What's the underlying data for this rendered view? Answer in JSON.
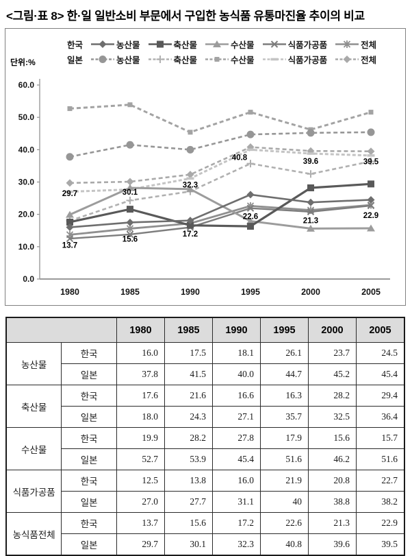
{
  "page": {
    "title": "<그림·표 8> 한·일 일반소비 부문에서 구입한 농식품 유통마진율 추이의 비교"
  },
  "chart": {
    "unit_label": "단위:%",
    "legend": {
      "korea_label": "한국",
      "japan_label": "일본",
      "categories": [
        "농산물",
        "축산물",
        "수산물",
        "식품가공품",
        "전체"
      ]
    }
  },
  "chart_data": {
    "type": "line",
    "x": [
      1980,
      1985,
      1990,
      1995,
      2000,
      2005
    ],
    "ylim": [
      0,
      60
    ],
    "yticks": [
      0,
      10,
      20,
      30,
      40,
      50,
      60
    ],
    "grid": false,
    "legend_position": "top",
    "series": [
      {
        "country": "한국",
        "label": "농산물",
        "marker": "diamond",
        "dashed": false,
        "color": "#6e6e6e",
        "width": 2.6,
        "values": [
          16.0,
          17.5,
          18.1,
          26.1,
          23.7,
          24.5
        ]
      },
      {
        "country": "한국",
        "label": "축산물",
        "marker": "square",
        "dashed": false,
        "color": "#595959",
        "width": 3.2,
        "values": [
          17.6,
          21.6,
          16.6,
          16.3,
          28.2,
          29.4
        ]
      },
      {
        "country": "한국",
        "label": "수산물",
        "marker": "triangle",
        "dashed": false,
        "color": "#9c9c9c",
        "width": 3.0,
        "values": [
          19.9,
          28.2,
          27.8,
          17.9,
          15.6,
          15.7
        ]
      },
      {
        "country": "한국",
        "label": "식품가공품",
        "marker": "x",
        "dashed": false,
        "color": "#7d7d7d",
        "width": 2.4,
        "values": [
          12.5,
          13.8,
          16.0,
          21.9,
          20.8,
          22.7
        ]
      },
      {
        "country": "한국",
        "label": "전체",
        "marker": "asterisk",
        "dashed": false,
        "color": "#8f8f8f",
        "width": 2.8,
        "values": [
          13.7,
          15.6,
          17.2,
          22.6,
          21.3,
          22.9
        ],
        "show_labels": true
      },
      {
        "country": "일본",
        "label": "농산물",
        "marker": "circle",
        "dashed": true,
        "color": "#969696",
        "width": 2.6,
        "values": [
          37.8,
          41.5,
          40.0,
          44.7,
          45.2,
          45.4
        ]
      },
      {
        "country": "일본",
        "label": "축산물",
        "marker": "plus",
        "dashed": true,
        "color": "#b0b0b0",
        "width": 2.6,
        "values": [
          18.0,
          24.3,
          27.1,
          35.7,
          32.5,
          36.4
        ]
      },
      {
        "country": "일본",
        "label": "수산물",
        "marker": "smallsquare",
        "dashed": true,
        "color": "#a3a3a3",
        "width": 3.0,
        "values": [
          52.7,
          53.9,
          45.4,
          51.6,
          46.2,
          51.6
        ]
      },
      {
        "country": "일본",
        "label": "식품가공품",
        "marker": "dash",
        "dashed": true,
        "color": "#c4c4c4",
        "width": 3.0,
        "values": [
          27.0,
          27.7,
          31.1,
          40.0,
          38.8,
          38.2
        ]
      },
      {
        "country": "일본",
        "label": "전체",
        "marker": "diamond",
        "dashed": true,
        "color": "#a9a9a9",
        "width": 2.6,
        "values": [
          29.7,
          30.1,
          32.3,
          40.8,
          39.6,
          39.5
        ],
        "show_labels": true
      }
    ]
  },
  "table": {
    "year_headers": [
      "1980",
      "1985",
      "1990",
      "1995",
      "2000",
      "2005"
    ],
    "groups": [
      {
        "category": "농산물",
        "rows": [
          {
            "country": "한국",
            "values": [
              "16.0",
              "17.5",
              "18.1",
              "26.1",
              "23.7",
              "24.5"
            ]
          },
          {
            "country": "일본",
            "values": [
              "37.8",
              "41.5",
              "40.0",
              "44.7",
              "45.2",
              "45.4"
            ]
          }
        ]
      },
      {
        "category": "축산물",
        "rows": [
          {
            "country": "한국",
            "values": [
              "17.6",
              "21.6",
              "16.6",
              "16.3",
              "28.2",
              "29.4"
            ]
          },
          {
            "country": "일본",
            "values": [
              "18.0",
              "24.3",
              "27.1",
              "35.7",
              "32.5",
              "36.4"
            ]
          }
        ]
      },
      {
        "category": "수산물",
        "rows": [
          {
            "country": "한국",
            "values": [
              "19.9",
              "28.2",
              "27.8",
              "17.9",
              "15.6",
              "15.7"
            ]
          },
          {
            "country": "일본",
            "values": [
              "52.7",
              "53.9",
              "45.4",
              "51.6",
              "46.2",
              "51.6"
            ]
          }
        ]
      },
      {
        "category": "식품가공품",
        "rows": [
          {
            "country": "한국",
            "values": [
              "12.5",
              "13.8",
              "16.0",
              "21.9",
              "20.8",
              "22.7"
            ]
          },
          {
            "country": "일본",
            "values": [
              "27.0",
              "27.7",
              "31.1",
              "40",
              "38.8",
              "38.2"
            ]
          }
        ]
      },
      {
        "category": "농식품전체",
        "rows": [
          {
            "country": "한국",
            "values": [
              "13.7",
              "15.6",
              "17.2",
              "22.6",
              "21.3",
              "22.9"
            ]
          },
          {
            "country": "일본",
            "values": [
              "29.7",
              "30.1",
              "32.3",
              "40.8",
              "39.6",
              "39.5"
            ]
          }
        ]
      }
    ]
  }
}
